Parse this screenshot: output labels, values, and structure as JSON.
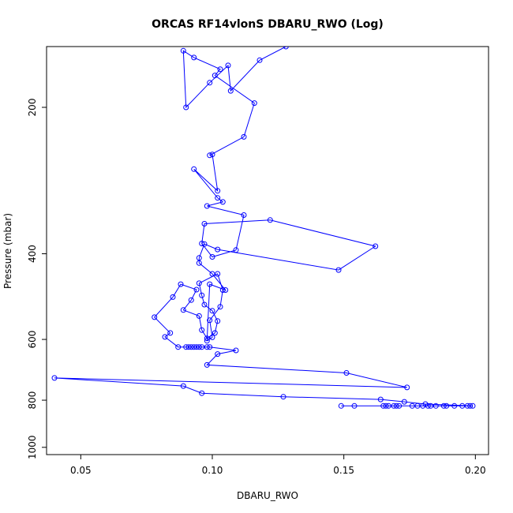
{
  "chart_data": {
    "type": "line",
    "title": "ORCAS RF14vlonS DBARU_RWO (Log)",
    "xlabel": "DBARU_RWO",
    "ylabel": "Pressure (mbar)",
    "xlim": [
      0.037,
      0.205
    ],
    "ylim": [
      1035,
      150
    ],
    "y_scale": "log",
    "y_reversed": true,
    "xticks": [
      0.05,
      0.1,
      0.15,
      0.2
    ],
    "xtick_labels": [
      "0.05",
      "0.10",
      "0.15",
      "0.20"
    ],
    "yticks": [
      200,
      400,
      600,
      800,
      1000
    ],
    "ytick_labels": [
      "200",
      "400",
      "600",
      "800",
      "1000"
    ],
    "grid": false,
    "legend": false,
    "series": [
      {
        "color": "#0000ff",
        "marker": "open-circle",
        "x": [
          0.149,
          0.154,
          0.165,
          0.166,
          0.167,
          0.169,
          0.17,
          0.171,
          0.176,
          0.178,
          0.18,
          0.182,
          0.183,
          0.185,
          0.188,
          0.189,
          0.192,
          0.195,
          0.197,
          0.198,
          0.199,
          0.181,
          0.173,
          0.164,
          0.127,
          0.096,
          0.089,
          0.04,
          0.174,
          0.151,
          0.098,
          0.102,
          0.109,
          0.099,
          0.098,
          0.096,
          0.095,
          0.094,
          0.093,
          0.092,
          0.091,
          0.09,
          0.087,
          0.082,
          0.084,
          0.078,
          0.085,
          0.088,
          0.094,
          0.092,
          0.089,
          0.095,
          0.096,
          0.098,
          0.101,
          0.102,
          0.1,
          0.097,
          0.096,
          0.095,
          0.102,
          0.104,
          0.103,
          0.099,
          0.1,
          0.098,
          0.099,
          0.105,
          0.1,
          0.095,
          0.095,
          0.097,
          0.102,
          0.148,
          0.162,
          0.122,
          0.097,
          0.096,
          0.1,
          0.109,
          0.112,
          0.098,
          0.104,
          0.102,
          0.093,
          0.102,
          0.1,
          0.099,
          0.112,
          0.116,
          0.101,
          0.103,
          0.093,
          0.089,
          0.09,
          0.099,
          0.106,
          0.107,
          0.118,
          0.128,
          0.133
        ],
        "y": [
          822,
          822,
          822,
          822,
          822,
          822,
          822,
          822,
          822,
          822,
          822,
          822,
          822,
          822,
          822,
          822,
          822,
          822,
          822,
          822,
          822,
          815,
          806,
          797,
          787,
          774,
          748,
          720,
          753,
          703,
          677,
          643,
          632,
          622,
          622,
          622,
          622,
          622,
          622,
          622,
          622,
          622,
          622,
          593,
          582,
          540,
          491,
          462,
          474,
          498,
          522,
          537,
          574,
          597,
          582,
          550,
          524,
          509,
          487,
          460,
          440,
          475,
          514,
          548,
          594,
          604,
          462,
          475,
          440,
          418,
          408,
          382,
          392,
          432,
          386,
          341,
          347,
          381,
          406,
          393,
          333,
          319,
          313,
          307,
          268,
          297,
          250,
          251,
          230,
          196,
          172,
          167,
          158,
          153,
          200,
          178,
          164,
          185,
          160,
          150,
          145
        ]
      }
    ]
  }
}
